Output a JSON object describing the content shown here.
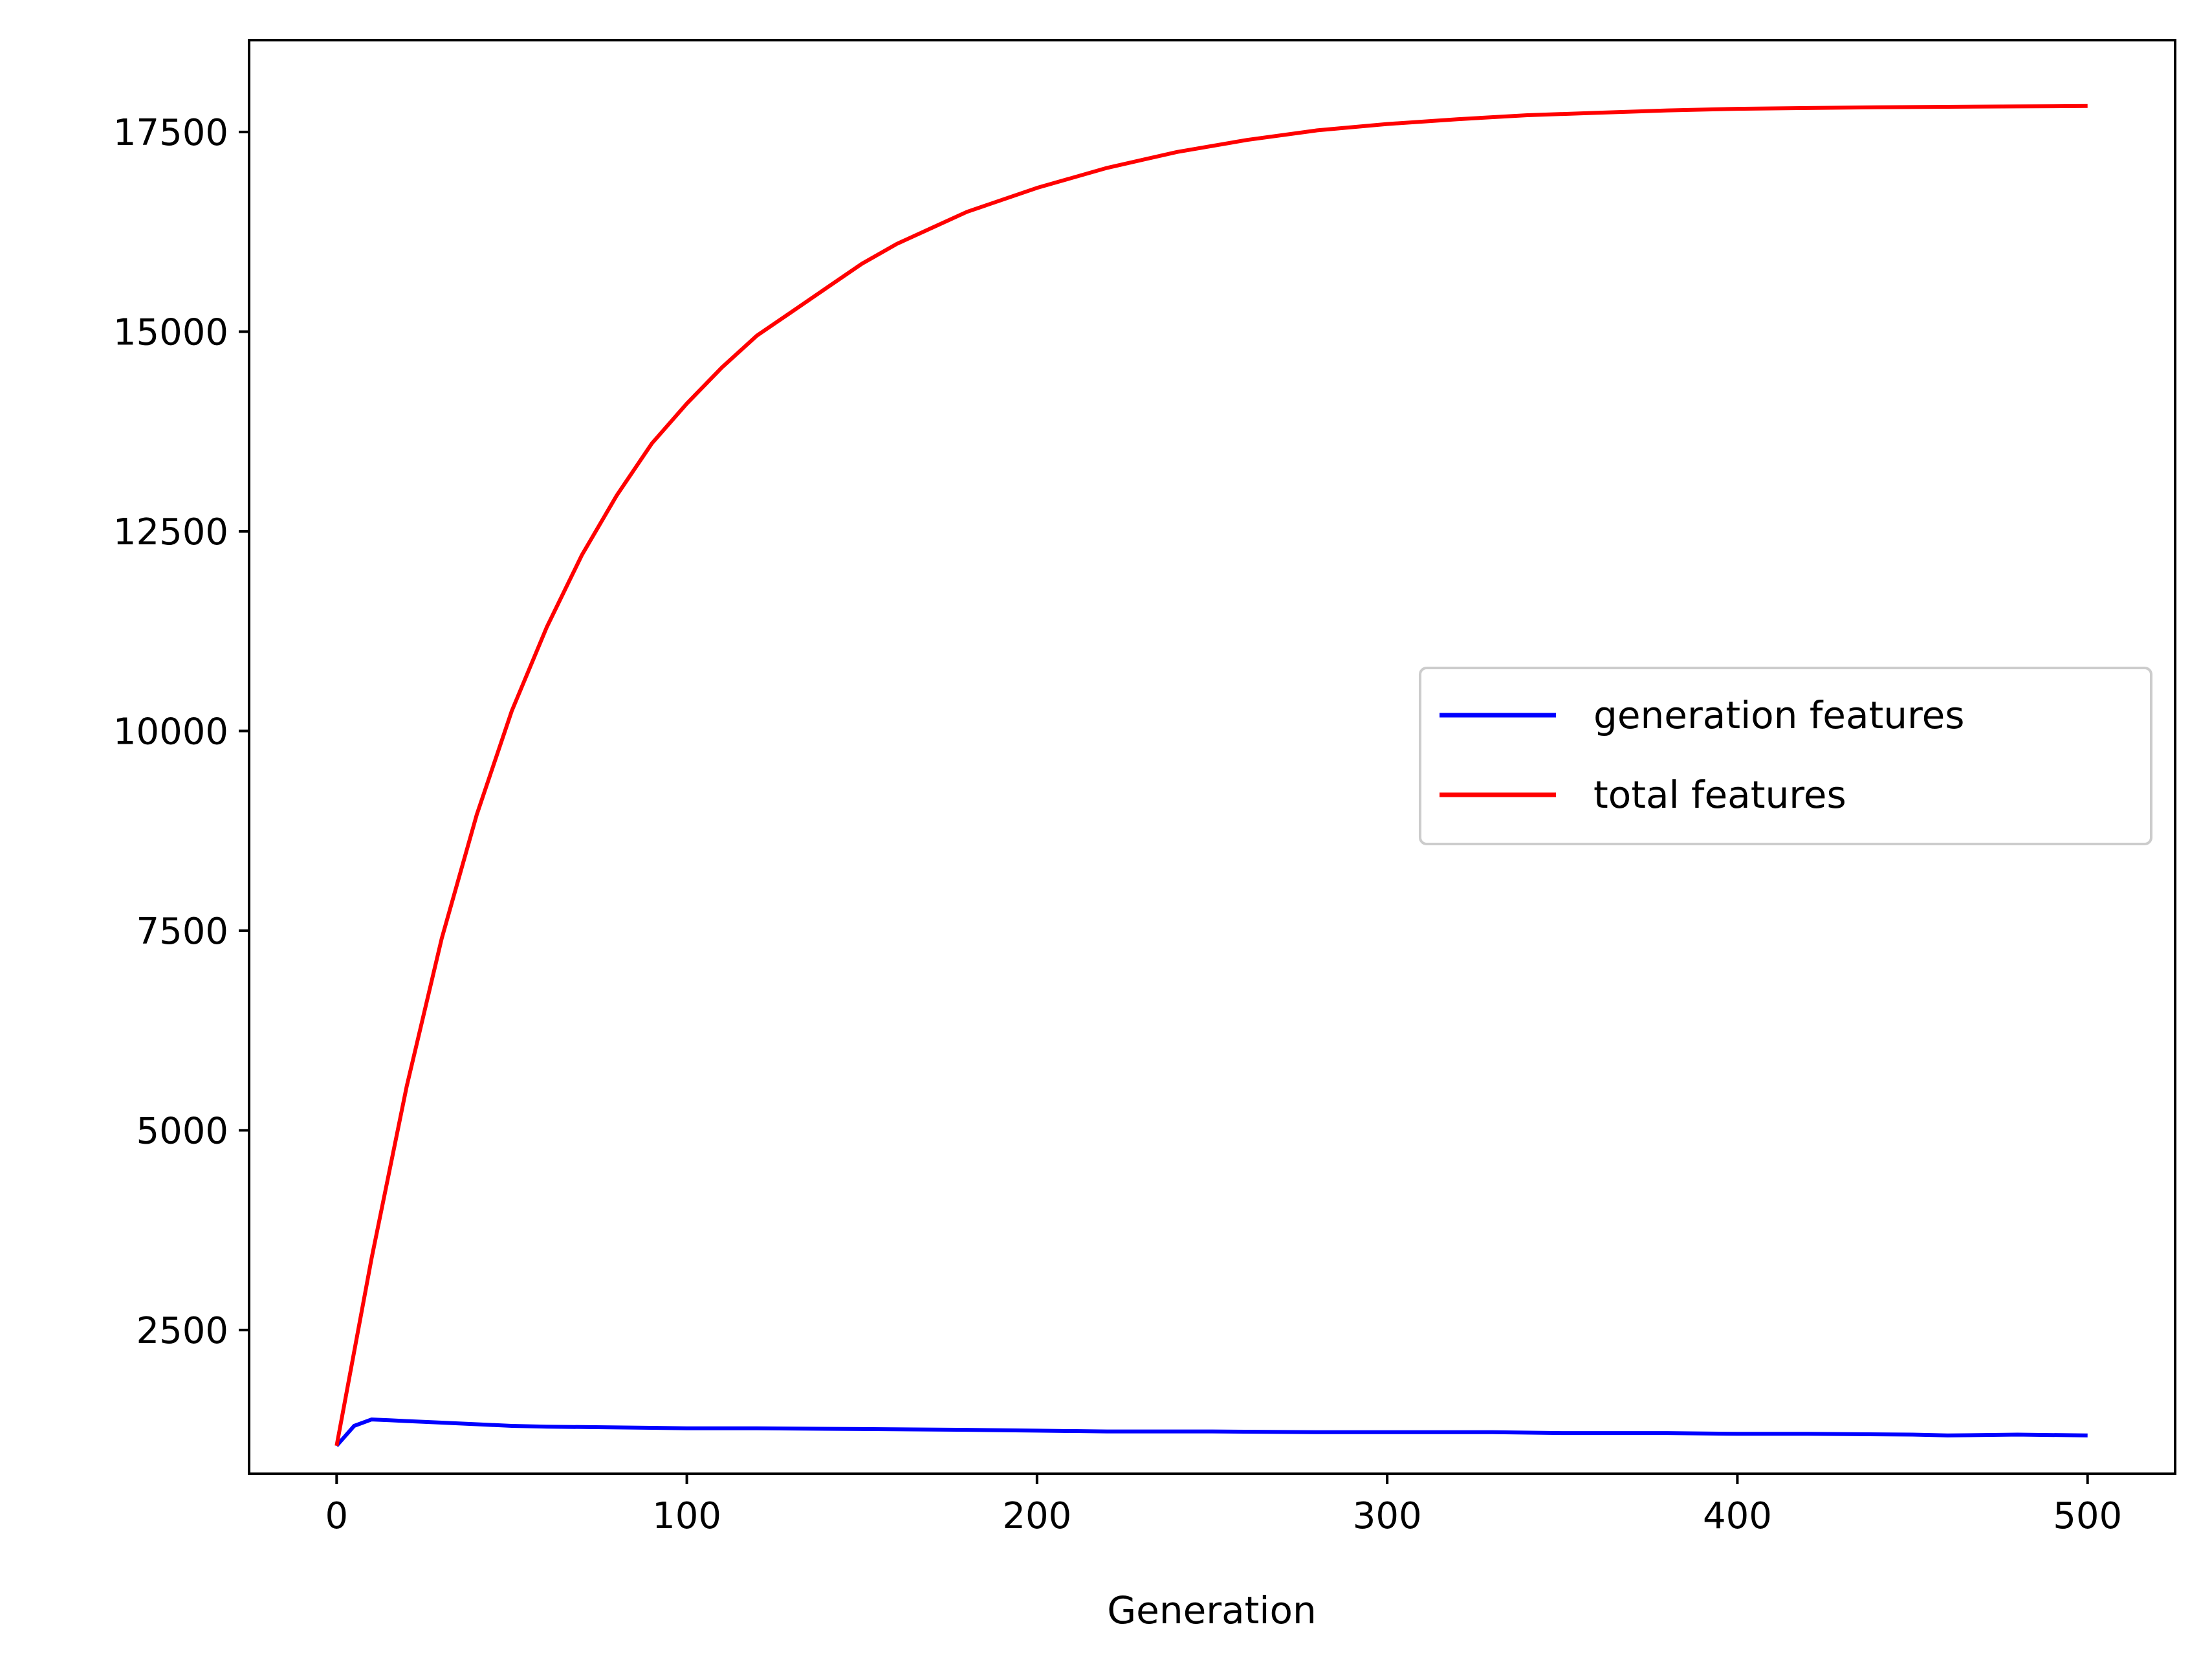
{
  "chart_data": {
    "type": "line",
    "title": "",
    "xlabel": "Generation",
    "ylabel": "",
    "xlim": [
      -25,
      525
    ],
    "ylim": [
      700,
      18650
    ],
    "xticks": [
      0,
      100,
      200,
      300,
      400,
      500
    ],
    "yticks": [
      2500,
      5000,
      7500,
      10000,
      12500,
      15000,
      17500
    ],
    "xtick_labels": [
      "0",
      "100",
      "200",
      "300",
      "400",
      "500"
    ],
    "ytick_labels": [
      "2500",
      "5000",
      "7500",
      "10000",
      "12500",
      "15000",
      "17500"
    ],
    "grid": false,
    "legend_position": "center-right",
    "series": [
      {
        "name": "generation features",
        "color": "#0000ff",
        "x": [
          0,
          5,
          10,
          15,
          20,
          30,
          40,
          50,
          60,
          80,
          100,
          120,
          150,
          180,
          200,
          220,
          250,
          280,
          300,
          330,
          350,
          380,
          400,
          420,
          450,
          460,
          480,
          500
        ],
        "y": [
          1050,
          1300,
          1380,
          1370,
          1360,
          1340,
          1320,
          1300,
          1290,
          1280,
          1270,
          1270,
          1260,
          1250,
          1240,
          1230,
          1230,
          1220,
          1220,
          1220,
          1210,
          1210,
          1200,
          1200,
          1190,
          1180,
          1190,
          1180
        ]
      },
      {
        "name": "total features",
        "color": "#ff0000",
        "x": [
          0,
          10,
          20,
          30,
          40,
          50,
          60,
          70,
          80,
          90,
          100,
          110,
          120,
          130,
          140,
          150,
          160,
          170,
          180,
          190,
          200,
          220,
          240,
          260,
          280,
          300,
          320,
          340,
          360,
          380,
          400,
          420,
          440,
          460,
          480,
          500
        ],
        "y": [
          1050,
          3400,
          5550,
          7400,
          8950,
          10250,
          11300,
          12200,
          12950,
          13600,
          14100,
          14550,
          14950,
          15250,
          15550,
          15850,
          16100,
          16300,
          16500,
          16650,
          16800,
          17050,
          17250,
          17400,
          17520,
          17600,
          17660,
          17710,
          17740,
          17770,
          17790,
          17800,
          17810,
          17815,
          17820,
          17825
        ]
      }
    ]
  }
}
